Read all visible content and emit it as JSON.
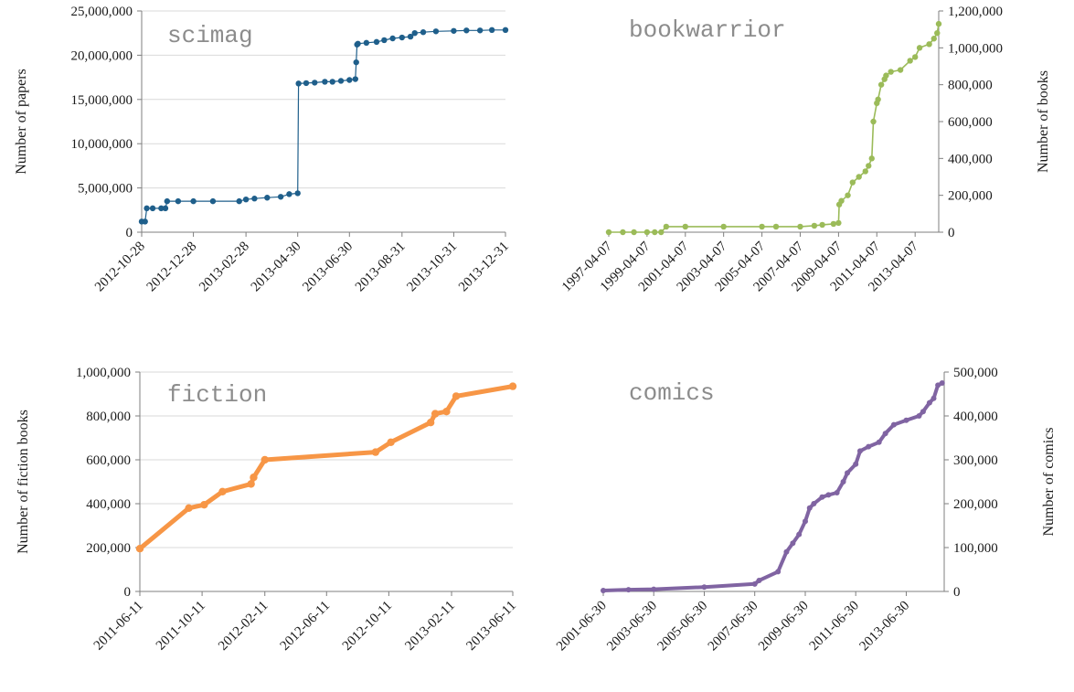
{
  "chart_data": [
    {
      "type": "line",
      "title": "scimag",
      "ylabel": "Number of papers",
      "y_axis_side": "left",
      "color": "#1f5f8b",
      "line_width": 1.2,
      "marker_size": 3.2,
      "ylim": [
        0,
        25000000
      ],
      "yticks": [
        0,
        5000000,
        10000000,
        15000000,
        20000000,
        25000000
      ],
      "ytick_labels": [
        "0",
        "5,000,000",
        "10,000,000",
        "15,000,000",
        "20,000,000",
        "25,000,000"
      ],
      "xlim": [
        "2012-10-28",
        "2013-12-31"
      ],
      "xticks": [
        "2012-10-28",
        "2012-12-28",
        "2013-02-28",
        "2013-04-30",
        "2013-06-30",
        "2013-08-31",
        "2013-10-31",
        "2013-12-31"
      ],
      "grid": "horizontal",
      "series": [
        {
          "x": [
            "2012-10-28",
            "2012-11-01",
            "2012-11-03",
            "2012-11-10",
            "2012-11-20",
            "2012-11-25",
            "2012-11-27",
            "2012-12-10",
            "2012-12-28",
            "2013-01-20",
            "2013-02-20",
            "2013-02-28",
            "2013-03-10",
            "2013-03-25",
            "2013-04-10",
            "2013-04-20",
            "2013-04-30",
            "2013-05-01",
            "2013-05-10",
            "2013-05-20",
            "2013-06-01",
            "2013-06-10",
            "2013-06-20",
            "2013-06-30",
            "2013-07-07",
            "2013-07-08",
            "2013-07-09",
            "2013-07-10",
            "2013-07-20",
            "2013-08-01",
            "2013-08-10",
            "2013-08-20",
            "2013-08-31",
            "2013-09-10",
            "2013-09-15",
            "2013-09-25",
            "2013-10-10",
            "2013-10-31",
            "2013-11-15",
            "2013-12-01",
            "2013-12-15",
            "2013-12-31"
          ],
          "y": [
            1200000,
            1200000,
            2700000,
            2700000,
            2700000,
            2700000,
            3500000,
            3500000,
            3500000,
            3500000,
            3500000,
            3700000,
            3800000,
            3900000,
            4000000,
            4300000,
            4400000,
            16800000,
            16850000,
            16900000,
            17000000,
            17000000,
            17100000,
            17200000,
            17300000,
            19200000,
            21200000,
            21300000,
            21400000,
            21500000,
            21700000,
            21900000,
            22000000,
            22100000,
            22500000,
            22600000,
            22700000,
            22750000,
            22800000,
            22800000,
            22850000,
            22850000
          ]
        }
      ]
    },
    {
      "type": "line",
      "title": "bookwarrior",
      "ylabel": "Number of books",
      "y_axis_side": "right",
      "color": "#9bbb59",
      "line_width": 1.6,
      "marker_size": 3.2,
      "ylim": [
        0,
        1200000
      ],
      "yticks": [
        0,
        200000,
        400000,
        600000,
        800000,
        1000000,
        1200000
      ],
      "ytick_labels": [
        "0",
        "200,000",
        "400,000",
        "600,000",
        "800,000",
        "1,000,000",
        "1,200,000"
      ],
      "xlim": [
        "1997-04-07",
        "2014-07-01"
      ],
      "xticks": [
        "1997-04-07",
        "1999-04-07",
        "2001-04-07",
        "2003-04-07",
        "2005-04-07",
        "2007-04-07",
        "2009-04-07",
        "2011-04-07",
        "2013-04-07"
      ],
      "grid": "none",
      "series": [
        {
          "x": [
            "1997-04-07",
            "1998-01-01",
            "1998-08-01",
            "1999-04-07",
            "1999-09-01",
            "2000-01-01",
            "2000-04-07",
            "2001-04-07",
            "2003-04-07",
            "2005-04-07",
            "2006-01-01",
            "2007-04-07",
            "2008-01-01",
            "2008-06-01",
            "2009-01-01",
            "2009-04-07",
            "2009-04-20",
            "2009-06-01",
            "2009-10-01",
            "2010-01-01",
            "2010-05-01",
            "2010-09-01",
            "2010-11-01",
            "2011-01-01",
            "2011-02-01",
            "2011-04-07",
            "2011-05-01",
            "2011-07-01",
            "2011-09-01",
            "2011-10-01",
            "2012-01-01",
            "2012-07-01",
            "2013-01-01",
            "2013-04-07",
            "2013-07-01",
            "2014-01-01",
            "2014-04-01",
            "2014-06-01",
            "2014-07-01"
          ],
          "y": [
            0,
            0,
            0,
            0,
            0,
            0,
            30000,
            30000,
            30000,
            30000,
            30000,
            30000,
            35000,
            40000,
            45000,
            50000,
            150000,
            170000,
            200000,
            270000,
            300000,
            330000,
            360000,
            400000,
            600000,
            700000,
            720000,
            800000,
            830000,
            850000,
            870000,
            880000,
            930000,
            950000,
            1000000,
            1020000,
            1050000,
            1080000,
            1130000
          ]
        }
      ]
    },
    {
      "type": "line",
      "title": "fiction",
      "ylabel": "Number of fiction books",
      "y_axis_side": "left",
      "color": "#f79646",
      "line_width": 5,
      "marker_size": 4.2,
      "ylim": [
        0,
        1000000
      ],
      "yticks": [
        0,
        200000,
        400000,
        600000,
        800000,
        1000000
      ],
      "ytick_labels": [
        "0",
        "200,000",
        "400,000",
        "600,000",
        "800,000",
        "1,000,000"
      ],
      "xlim": [
        "2011-06-11",
        "2013-06-11"
      ],
      "xticks": [
        "2011-06-11",
        "2011-10-11",
        "2012-02-11",
        "2012-06-11",
        "2012-10-11",
        "2013-02-11",
        "2013-06-11"
      ],
      "grid": "horizontal",
      "series": [
        {
          "x": [
            "2011-06-11",
            "2011-09-15",
            "2011-10-15",
            "2011-11-20",
            "2012-01-15",
            "2012-01-20",
            "2012-02-11",
            "2012-09-15",
            "2012-10-15",
            "2013-01-01",
            "2013-01-10",
            "2013-02-01",
            "2013-02-20",
            "2013-06-11"
          ],
          "y": [
            195000,
            380000,
            395000,
            455000,
            490000,
            520000,
            600000,
            635000,
            680000,
            770000,
            810000,
            820000,
            890000,
            935000
          ]
        }
      ]
    },
    {
      "type": "line",
      "title": "comics",
      "ylabel": "Number of comics",
      "y_axis_side": "right",
      "color": "#8064a2",
      "line_width": 4,
      "marker_size": 3,
      "ylim": [
        0,
        500000
      ],
      "yticks": [
        0,
        100000,
        200000,
        300000,
        400000,
        500000
      ],
      "ytick_labels": [
        "0",
        "100,000",
        "200,000",
        "300,000",
        "400,000",
        "500,000"
      ],
      "xlim": [
        "2001-06-30",
        "2014-12-31"
      ],
      "xticks": [
        "2001-06-30",
        "2003-06-30",
        "2005-06-30",
        "2007-06-30",
        "2009-06-30",
        "2011-06-30",
        "2013-06-30"
      ],
      "grid": "none",
      "series": [
        {
          "x": [
            "2001-06-30",
            "2002-06-30",
            "2003-06-30",
            "2005-06-30",
            "2007-06-30",
            "2007-09-01",
            "2008-06-01",
            "2008-10-01",
            "2009-01-01",
            "2009-04-01",
            "2009-06-30",
            "2009-09-01",
            "2009-11-01",
            "2010-03-01",
            "2010-06-01",
            "2010-10-01",
            "2011-01-01",
            "2011-03-01",
            "2011-06-30",
            "2011-09-01",
            "2012-01-01",
            "2012-06-01",
            "2012-09-01",
            "2013-01-01",
            "2013-06-30",
            "2014-01-01",
            "2014-03-01",
            "2014-06-01",
            "2014-08-01",
            "2014-10-01",
            "2014-12-01"
          ],
          "y": [
            2000,
            4000,
            5000,
            10000,
            17000,
            25000,
            45000,
            90000,
            110000,
            130000,
            160000,
            190000,
            200000,
            215000,
            220000,
            225000,
            250000,
            270000,
            290000,
            320000,
            330000,
            340000,
            360000,
            380000,
            390000,
            400000,
            410000,
            430000,
            440000,
            470000,
            475000
          ]
        }
      ]
    }
  ]
}
